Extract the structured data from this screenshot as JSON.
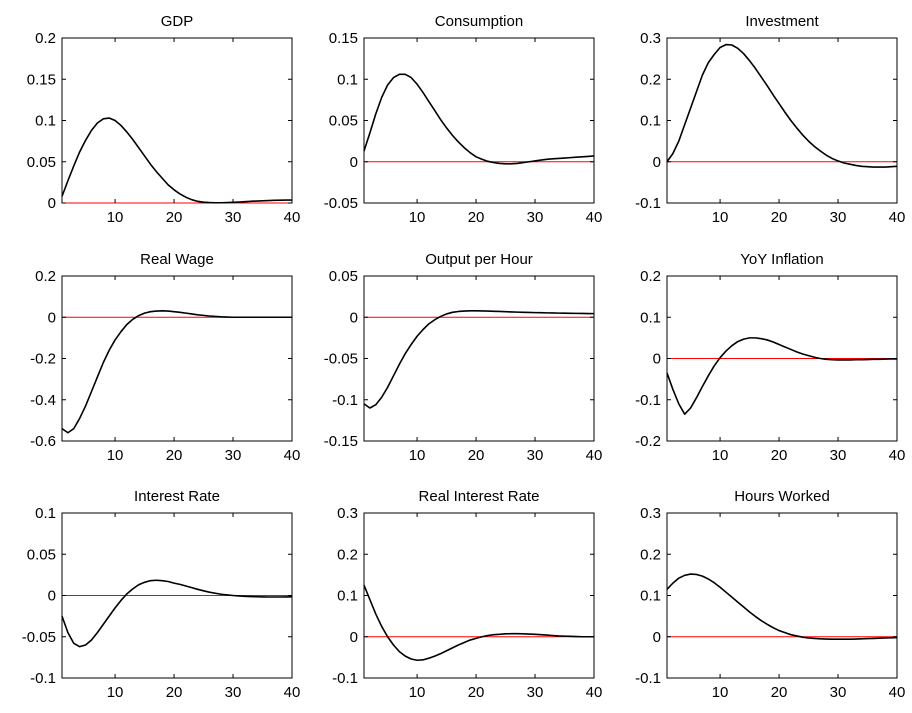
{
  "colors": {
    "series": "#000000",
    "zero_line": "#ff0000",
    "axes": "#000000",
    "background": "#ffffff"
  },
  "chart_data": [
    {
      "type": "line",
      "title": "GDP",
      "xlim": [
        1,
        40
      ],
      "ylim": [
        0,
        0.2
      ],
      "xticks": [
        10,
        20,
        30,
        40
      ],
      "xtick_labels": [
        "10",
        "20",
        "30",
        "40"
      ],
      "yticks": [
        0,
        0.05,
        0.1,
        0.15,
        0.2
      ],
      "ytick_labels": [
        "0",
        "0.05",
        "0.1",
        "0.15",
        "0.2"
      ],
      "grid": false,
      "zero_line": 0,
      "x": [
        1,
        2,
        3,
        4,
        5,
        6,
        7,
        8,
        9,
        10,
        11,
        12,
        13,
        14,
        15,
        16,
        17,
        18,
        19,
        20,
        21,
        22,
        23,
        24,
        25,
        26,
        27,
        28,
        29,
        30,
        31,
        32,
        33,
        34,
        35,
        36,
        37,
        38,
        39,
        40
      ],
      "series": [
        {
          "values": [
            0.008,
            0.027,
            0.045,
            0.062,
            0.076,
            0.088,
            0.097,
            0.102,
            0.103,
            0.1,
            0.094,
            0.086,
            0.077,
            0.067,
            0.057,
            0.047,
            0.038,
            0.03,
            0.022,
            0.016,
            0.011,
            0.007,
            0.004,
            0.002,
            0.001,
            0.0005,
            0.0003,
            0.0003,
            0.0005,
            0.0008,
            0.0012,
            0.0016,
            0.002,
            0.0024,
            0.0027,
            0.003,
            0.0032,
            0.0034,
            0.0035,
            0.0036
          ]
        }
      ]
    },
    {
      "type": "line",
      "title": "Consumption",
      "xlim": [
        1,
        40
      ],
      "ylim": [
        -0.05,
        0.15
      ],
      "xticks": [
        10,
        20,
        30,
        40
      ],
      "xtick_labels": [
        "10",
        "20",
        "30",
        "40"
      ],
      "yticks": [
        -0.05,
        0,
        0.05,
        0.1,
        0.15
      ],
      "ytick_labels": [
        "-0.05",
        "0",
        "0.05",
        "0.1",
        "0.15"
      ],
      "grid": false,
      "zero_line": 0,
      "x": [
        1,
        2,
        3,
        4,
        5,
        6,
        7,
        8,
        9,
        10,
        11,
        12,
        13,
        14,
        15,
        16,
        17,
        18,
        19,
        20,
        21,
        22,
        23,
        24,
        25,
        26,
        27,
        28,
        29,
        30,
        31,
        32,
        33,
        34,
        35,
        36,
        37,
        38,
        39,
        40
      ],
      "series": [
        {
          "values": [
            0.013,
            0.035,
            0.058,
            0.078,
            0.093,
            0.102,
            0.106,
            0.106,
            0.102,
            0.094,
            0.084,
            0.073,
            0.062,
            0.051,
            0.041,
            0.032,
            0.024,
            0.017,
            0.011,
            0.006,
            0.003,
            0.0005,
            -0.001,
            -0.002,
            -0.0025,
            -0.0025,
            -0.002,
            -0.001,
            0.0,
            0.001,
            0.002,
            0.003,
            0.0035,
            0.004,
            0.0045,
            0.005,
            0.0055,
            0.006,
            0.0065,
            0.007
          ]
        }
      ]
    },
    {
      "type": "line",
      "title": "Investment",
      "xlim": [
        1,
        40
      ],
      "ylim": [
        -0.1,
        0.3
      ],
      "xticks": [
        10,
        20,
        30,
        40
      ],
      "xtick_labels": [
        "10",
        "20",
        "30",
        "40"
      ],
      "yticks": [
        -0.1,
        0,
        0.1,
        0.2,
        0.3
      ],
      "ytick_labels": [
        "-0.1",
        "0",
        "0.1",
        "0.2",
        "0.3"
      ],
      "grid": false,
      "zero_line": 0,
      "x": [
        1,
        2,
        3,
        4,
        5,
        6,
        7,
        8,
        9,
        10,
        11,
        12,
        13,
        14,
        15,
        16,
        17,
        18,
        19,
        20,
        21,
        22,
        23,
        24,
        25,
        26,
        27,
        28,
        29,
        30,
        31,
        32,
        33,
        34,
        35,
        36,
        37,
        38,
        39,
        40
      ],
      "series": [
        {
          "values": [
            0.0,
            0.02,
            0.05,
            0.09,
            0.13,
            0.17,
            0.21,
            0.24,
            0.26,
            0.277,
            0.284,
            0.283,
            0.275,
            0.262,
            0.245,
            0.226,
            0.205,
            0.184,
            0.162,
            0.141,
            0.12,
            0.1,
            0.082,
            0.065,
            0.05,
            0.037,
            0.026,
            0.016,
            0.008,
            0.002,
            -0.003,
            -0.006,
            -0.009,
            -0.011,
            -0.012,
            -0.013,
            -0.013,
            -0.013,
            -0.012,
            -0.011
          ]
        }
      ]
    },
    {
      "type": "line",
      "title": "Real Wage",
      "xlim": [
        1,
        40
      ],
      "ylim": [
        -0.6,
        0.2
      ],
      "xticks": [
        10,
        20,
        30,
        40
      ],
      "xtick_labels": [
        "10",
        "20",
        "30",
        "40"
      ],
      "yticks": [
        -0.6,
        -0.4,
        -0.2,
        0,
        0.2
      ],
      "ytick_labels": [
        "-0.6",
        "-0.4",
        "-0.2",
        "0",
        "0.2"
      ],
      "grid": false,
      "zero_line": 0,
      "x": [
        1,
        2,
        3,
        4,
        5,
        6,
        7,
        8,
        9,
        10,
        11,
        12,
        13,
        14,
        15,
        16,
        17,
        18,
        19,
        20,
        21,
        22,
        23,
        24,
        25,
        26,
        27,
        28,
        29,
        30,
        31,
        32,
        33,
        34,
        35,
        36,
        37,
        38,
        39,
        40
      ],
      "series": [
        {
          "values": [
            -0.54,
            -0.56,
            -0.54,
            -0.49,
            -0.43,
            -0.36,
            -0.29,
            -0.22,
            -0.16,
            -0.11,
            -0.07,
            -0.035,
            -0.01,
            0.008,
            0.02,
            0.027,
            0.03,
            0.031,
            0.03,
            0.027,
            0.024,
            0.02,
            0.016,
            0.012,
            0.009,
            0.006,
            0.004,
            0.002,
            0.001,
            0.0,
            0.0,
            0.0,
            0.0,
            0.0,
            0.0,
            0.0,
            0.0,
            0.0,
            0.0,
            0.0
          ]
        }
      ]
    },
    {
      "type": "line",
      "title": "Output per Hour",
      "xlim": [
        1,
        40
      ],
      "ylim": [
        -0.15,
        0.05
      ],
      "xticks": [
        10,
        20,
        30,
        40
      ],
      "xtick_labels": [
        "10",
        "20",
        "30",
        "40"
      ],
      "yticks": [
        -0.15,
        -0.1,
        -0.05,
        0,
        0.05
      ],
      "ytick_labels": [
        "-0.15",
        "-0.1",
        "-0.05",
        "0",
        "0.05"
      ],
      "grid": false,
      "zero_line": 0,
      "x": [
        1,
        2,
        3,
        4,
        5,
        6,
        7,
        8,
        9,
        10,
        11,
        12,
        13,
        14,
        15,
        16,
        17,
        18,
        19,
        20,
        21,
        22,
        23,
        24,
        25,
        26,
        27,
        28,
        29,
        30,
        31,
        32,
        33,
        34,
        35,
        36,
        37,
        38,
        39,
        40
      ],
      "series": [
        {
          "values": [
            -0.105,
            -0.11,
            -0.106,
            -0.097,
            -0.085,
            -0.071,
            -0.057,
            -0.044,
            -0.033,
            -0.023,
            -0.015,
            -0.008,
            -0.003,
            0.001,
            0.004,
            0.006,
            0.007,
            0.0075,
            0.0078,
            0.0078,
            0.0077,
            0.0075,
            0.0072,
            0.007,
            0.0067,
            0.0065,
            0.0062,
            0.006,
            0.0058,
            0.0056,
            0.0055,
            0.0053,
            0.0052,
            0.005,
            0.0049,
            0.0048,
            0.0047,
            0.0046,
            0.0045,
            0.0044
          ]
        }
      ]
    },
    {
      "type": "line",
      "title": "YoY Inflation",
      "xlim": [
        1,
        40
      ],
      "ylim": [
        -0.2,
        0.2
      ],
      "xticks": [
        10,
        20,
        30,
        40
      ],
      "xtick_labels": [
        "10",
        "20",
        "30",
        "40"
      ],
      "yticks": [
        -0.2,
        -0.1,
        0,
        0.1,
        0.2
      ],
      "ytick_labels": [
        "-0.2",
        "-0.1",
        "0",
        "0.1",
        "0.2"
      ],
      "grid": false,
      "zero_line": 0,
      "x": [
        1,
        2,
        3,
        4,
        5,
        6,
        7,
        8,
        9,
        10,
        11,
        12,
        13,
        14,
        15,
        16,
        17,
        18,
        19,
        20,
        21,
        22,
        23,
        24,
        25,
        26,
        27,
        28,
        29,
        30,
        31,
        32,
        33,
        34,
        35,
        36,
        37,
        38,
        39,
        40
      ],
      "series": [
        {
          "values": [
            -0.035,
            -0.075,
            -0.11,
            -0.135,
            -0.12,
            -0.095,
            -0.068,
            -0.042,
            -0.018,
            0.002,
            0.018,
            0.031,
            0.041,
            0.047,
            0.05,
            0.05,
            0.048,
            0.045,
            0.04,
            0.034,
            0.028,
            0.022,
            0.016,
            0.011,
            0.007,
            0.003,
            0.0,
            -0.002,
            -0.003,
            -0.0035,
            -0.0035,
            -0.0035,
            -0.003,
            -0.003,
            -0.0025,
            -0.002,
            -0.002,
            -0.0015,
            -0.001,
            -0.001
          ]
        }
      ]
    },
    {
      "type": "line",
      "title": "Interest Rate",
      "xlim": [
        1,
        40
      ],
      "ylim": [
        -0.1,
        0.1
      ],
      "xticks": [
        10,
        20,
        30,
        40
      ],
      "xtick_labels": [
        "10",
        "20",
        "30",
        "40"
      ],
      "yticks": [
        -0.1,
        -0.05,
        0,
        0.05,
        0.1
      ],
      "ytick_labels": [
        "-0.1",
        "-0.05",
        "0",
        "0.05",
        "0.1"
      ],
      "grid": false,
      "zero_line": 0,
      "x": [
        1,
        2,
        3,
        4,
        5,
        6,
        7,
        8,
        9,
        10,
        11,
        12,
        13,
        14,
        15,
        16,
        17,
        18,
        19,
        20,
        21,
        22,
        23,
        24,
        25,
        26,
        27,
        28,
        29,
        30,
        31,
        32,
        33,
        34,
        35,
        36,
        37,
        38,
        39,
        40
      ],
      "series": [
        {
          "values": [
            -0.025,
            -0.045,
            -0.058,
            -0.062,
            -0.06,
            -0.054,
            -0.045,
            -0.035,
            -0.025,
            -0.015,
            -0.006,
            0.002,
            0.008,
            0.013,
            0.016,
            0.018,
            0.0185,
            0.018,
            0.017,
            0.015,
            0.0135,
            0.0115,
            0.0095,
            0.0075,
            0.0057,
            0.004,
            0.0027,
            0.0015,
            0.0007,
            0.0,
            -0.0005,
            -0.001,
            -0.0013,
            -0.0015,
            -0.0017,
            -0.0018,
            -0.0018,
            -0.0018,
            -0.0017,
            -0.0016
          ]
        }
      ]
    },
    {
      "type": "line",
      "title": "Real Interest Rate",
      "xlim": [
        1,
        40
      ],
      "ylim": [
        -0.1,
        0.3
      ],
      "xticks": [
        10,
        20,
        30,
        40
      ],
      "xtick_labels": [
        "10",
        "20",
        "30",
        "40"
      ],
      "yticks": [
        -0.1,
        0,
        0.1,
        0.2,
        0.3
      ],
      "ytick_labels": [
        "-0.1",
        "0",
        "0.1",
        "0.2",
        "0.3"
      ],
      "grid": false,
      "zero_line": 0,
      "x": [
        1,
        2,
        3,
        4,
        5,
        6,
        7,
        8,
        9,
        10,
        11,
        12,
        13,
        14,
        15,
        16,
        17,
        18,
        19,
        20,
        21,
        22,
        23,
        24,
        25,
        26,
        27,
        28,
        29,
        30,
        31,
        32,
        33,
        34,
        35,
        36,
        37,
        38,
        39,
        40
      ],
      "series": [
        {
          "values": [
            0.125,
            0.09,
            0.055,
            0.025,
            0.0,
            -0.02,
            -0.036,
            -0.047,
            -0.054,
            -0.057,
            -0.056,
            -0.052,
            -0.047,
            -0.041,
            -0.034,
            -0.027,
            -0.02,
            -0.014,
            -0.008,
            -0.004,
            0.0,
            0.003,
            0.005,
            0.006,
            0.007,
            0.0075,
            0.0075,
            0.007,
            0.0065,
            0.006,
            0.005,
            0.004,
            0.003,
            0.002,
            0.0015,
            0.001,
            0.0005,
            0.0,
            0.0,
            0.0
          ]
        }
      ]
    },
    {
      "type": "line",
      "title": "Hours Worked",
      "xlim": [
        1,
        40
      ],
      "ylim": [
        -0.1,
        0.3
      ],
      "xticks": [
        10,
        20,
        30,
        40
      ],
      "xtick_labels": [
        "10",
        "20",
        "30",
        "40"
      ],
      "yticks": [
        -0.1,
        0,
        0.1,
        0.2,
        0.3
      ],
      "ytick_labels": [
        "-0.1",
        "0",
        "0.1",
        "0.2",
        "0.3"
      ],
      "grid": false,
      "zero_line": 0,
      "x": [
        1,
        2,
        3,
        4,
        5,
        6,
        7,
        8,
        9,
        10,
        11,
        12,
        13,
        14,
        15,
        16,
        17,
        18,
        19,
        20,
        21,
        22,
        23,
        24,
        25,
        26,
        27,
        28,
        29,
        30,
        31,
        32,
        33,
        34,
        35,
        36,
        37,
        38,
        39,
        40
      ],
      "series": [
        {
          "values": [
            0.115,
            0.13,
            0.142,
            0.149,
            0.152,
            0.151,
            0.147,
            0.14,
            0.131,
            0.12,
            0.108,
            0.096,
            0.084,
            0.072,
            0.06,
            0.049,
            0.039,
            0.03,
            0.022,
            0.015,
            0.01,
            0.005,
            0.002,
            -0.001,
            -0.003,
            -0.004,
            -0.005,
            -0.0055,
            -0.0058,
            -0.006,
            -0.006,
            -0.0058,
            -0.0055,
            -0.005,
            -0.0045,
            -0.004,
            -0.0035,
            -0.003,
            -0.0025,
            -0.002
          ]
        }
      ]
    }
  ]
}
